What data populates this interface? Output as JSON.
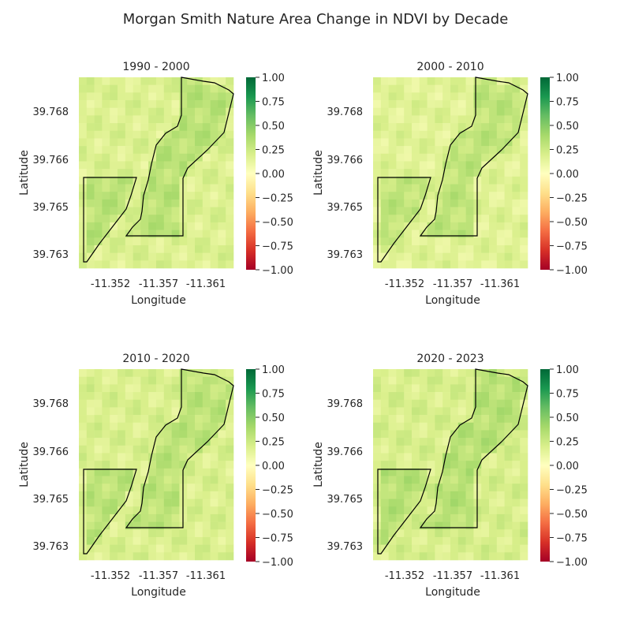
{
  "figure": {
    "title": "Morgan Smith Nature Area Change in NDVI by Decade"
  },
  "colorbar": {
    "ticks": [
      "1.00",
      "0.75",
      "0.50",
      "0.25",
      "0.00",
      "−0.25",
      "−0.50",
      "−0.75",
      "−1.00"
    ],
    "colormap": "RdYlGn",
    "range": [
      -1,
      1
    ]
  },
  "outline_color": "#000000",
  "chart_data": [
    {
      "type": "heatmap",
      "title": "1990 - 2000",
      "xlabel": "Longitude",
      "ylabel": "Latitude",
      "xticks": [
        "-11.352",
        "-11.357",
        "-11.361"
      ],
      "yticks": [
        "39.768",
        "39.766",
        "39.765",
        "39.763"
      ],
      "value_range": [
        -1,
        1
      ],
      "outside_mean": 0.18,
      "inside_mean": 0.32
    },
    {
      "type": "heatmap",
      "title": "2000 - 2010",
      "xlabel": "Longitude",
      "ylabel": "Latitude",
      "xticks": [
        "-11.352",
        "-11.357",
        "-11.361"
      ],
      "yticks": [
        "39.768",
        "39.766",
        "39.765",
        "39.763"
      ],
      "value_range": [
        -1,
        1
      ],
      "outside_mean": 0.16,
      "inside_mean": 0.3
    },
    {
      "type": "heatmap",
      "title": "2010 - 2020",
      "xlabel": "Longitude",
      "ylabel": "Latitude",
      "xticks": [
        "-11.352",
        "-11.357",
        "-11.361"
      ],
      "yticks": [
        "39.768",
        "39.766",
        "39.765",
        "39.763"
      ],
      "value_range": [
        -1,
        1
      ],
      "outside_mean": 0.19,
      "inside_mean": 0.31
    },
    {
      "type": "heatmap",
      "title": "2020 - 2023",
      "xlabel": "Longitude",
      "ylabel": "Latitude",
      "xticks": [
        "-11.352",
        "-11.357",
        "-11.361"
      ],
      "yticks": [
        "39.768",
        "39.766",
        "39.765",
        "39.763"
      ],
      "value_range": [
        -1,
        1
      ],
      "outside_mean": 0.2,
      "inside_mean": 0.33
    }
  ]
}
